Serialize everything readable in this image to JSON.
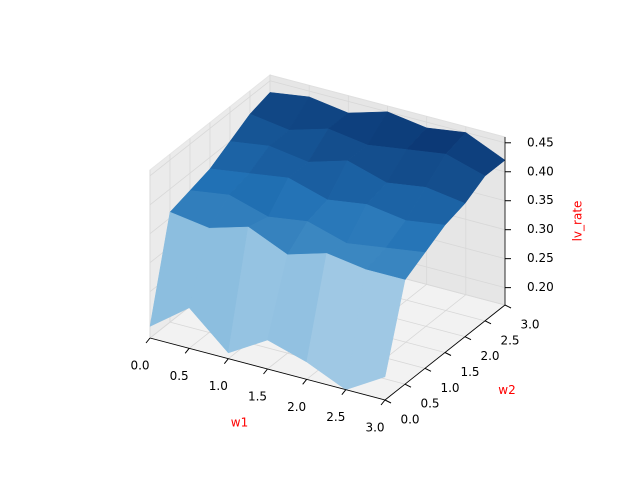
{
  "chart_data": {
    "type": "surface",
    "x_label": "w1",
    "y_label": "w2",
    "z_label": "lv_rate",
    "label_color": "#ff0000",
    "x": [
      0,
      0.5,
      1,
      1.5,
      2,
      2.5,
      3
    ],
    "y": [
      0,
      0.5,
      1,
      1.5,
      2,
      2.5,
      3
    ],
    "z": [
      [
        0.19,
        0.24,
        0.18,
        0.22,
        0.2,
        0.17,
        0.21
      ],
      [
        0.36,
        0.35,
        0.37,
        0.34,
        0.36,
        0.35,
        0.35
      ],
      [
        0.37,
        0.38,
        0.36,
        0.37,
        0.35,
        0.36,
        0.37
      ],
      [
        0.38,
        0.39,
        0.4,
        0.38,
        0.39,
        0.38,
        0.39
      ],
      [
        0.4,
        0.41,
        0.4,
        0.42,
        0.4,
        0.41,
        0.4
      ],
      [
        0.42,
        0.41,
        0.43,
        0.42,
        0.43,
        0.44,
        0.42
      ],
      [
        0.43,
        0.44,
        0.43,
        0.45,
        0.44,
        0.45,
        0.42
      ]
    ],
    "colormap": [
      "#f7fbff",
      "#c6dbef",
      "#6baed6",
      "#2171b5",
      "#08306b"
    ],
    "xlim": [
      0,
      3
    ],
    "ylim": [
      0,
      3
    ],
    "zlim": [
      0.17,
      0.46
    ],
    "xticks": [
      {
        "value": 0,
        "label": "0.0"
      },
      {
        "value": 0.5,
        "label": "0.5"
      },
      {
        "value": 1,
        "label": "1.0"
      },
      {
        "value": 1.5,
        "label": "1.5"
      },
      {
        "value": 2,
        "label": "2.0"
      },
      {
        "value": 2.5,
        "label": "2.5"
      },
      {
        "value": 3,
        "label": "3.0"
      }
    ],
    "yticks": [
      {
        "value": 0,
        "label": "0.0"
      },
      {
        "value": 0.5,
        "label": "0.5"
      },
      {
        "value": 1,
        "label": "1.0"
      },
      {
        "value": 1.5,
        "label": "1.5"
      },
      {
        "value": 2,
        "label": "2.0"
      },
      {
        "value": 2.5,
        "label": "2.5"
      },
      {
        "value": 3,
        "label": "3.0"
      }
    ],
    "zticks": [
      {
        "value": 0.2,
        "label": "0.20"
      },
      {
        "value": 0.25,
        "label": "0.25"
      },
      {
        "value": 0.3,
        "label": "0.30"
      },
      {
        "value": 0.35,
        "label": "0.35"
      },
      {
        "value": 0.4,
        "label": "0.40"
      },
      {
        "value": 0.45,
        "label": "0.45"
      }
    ],
    "grid": true
  }
}
